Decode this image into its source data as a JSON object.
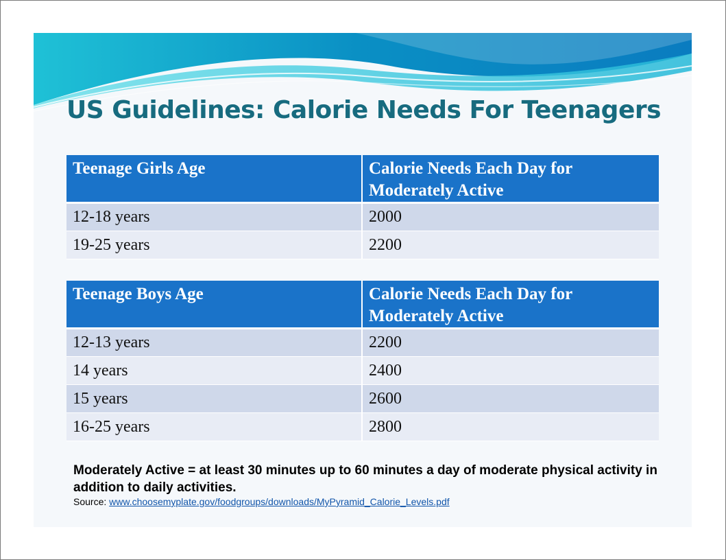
{
  "slide": {
    "title": "US Guidelines: Calorie Needs For Teenagers"
  },
  "girls_table": {
    "headers": [
      "Teenage Girls Age",
      "Calorie  Needs Each Day for Moderately Active"
    ],
    "rows": [
      {
        "age": "12-18 years",
        "calories": "2000"
      },
      {
        "age": "19-25 years",
        "calories": "2200"
      }
    ]
  },
  "boys_table": {
    "headers": [
      "Teenage Boys Age",
      "Calorie  Needs Each Day for Moderately Active"
    ],
    "rows": [
      {
        "age": "12-13 years",
        "calories": "2200"
      },
      {
        "age": "14 years",
        "calories": "2400"
      },
      {
        "age": "15 years",
        "calories": "2600"
      },
      {
        "age": "16-25 years",
        "calories": "2800"
      }
    ]
  },
  "footnote": {
    "definition": "Moderately Active = at least 30 minutes up to 60 minutes a day of moderate physical activity in addition to daily activities.",
    "source_label": "Source: ",
    "source_link": "www.choosemyplate.gov/foodgroups/downloads/MyPyramid_Calorie_Levels.pdf"
  },
  "colors": {
    "title": "#176b7f",
    "header_bg": "#1a73c9",
    "row_odd": "#cfd8ea",
    "row_even": "#e8ecf5",
    "link": "#1155aa"
  }
}
